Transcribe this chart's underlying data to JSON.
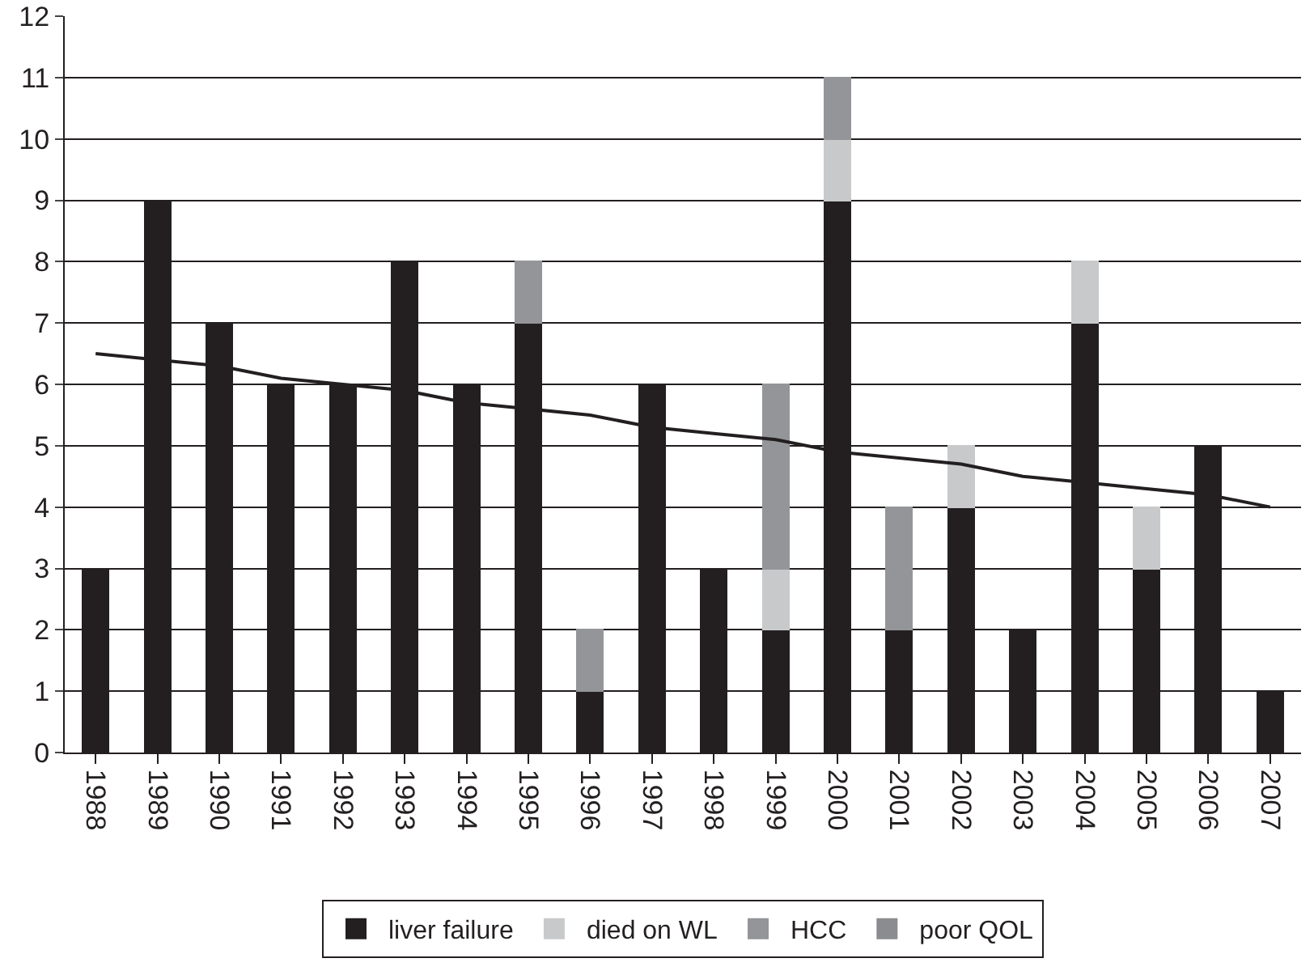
{
  "chart_data": {
    "type": "bar",
    "stacked": true,
    "categories": [
      "1988",
      "1989",
      "1990",
      "1991",
      "1992",
      "1993",
      "1994",
      "1995",
      "1996",
      "1997",
      "1998",
      "1999",
      "2000",
      "2001",
      "2002",
      "2003",
      "2004",
      "2005",
      "2006",
      "2007"
    ],
    "series": [
      {
        "name": "liver failure",
        "color": "#231f20",
        "values": [
          3,
          9,
          7,
          6,
          6,
          8,
          6,
          7,
          1,
          6,
          3,
          2,
          9,
          2,
          4,
          2,
          7,
          3,
          5,
          1
        ]
      },
      {
        "name": "died on WL",
        "color": "#c8c9cb",
        "values": [
          null,
          null,
          null,
          null,
          null,
          null,
          null,
          null,
          null,
          null,
          null,
          1,
          1,
          null,
          1,
          null,
          1,
          1,
          null,
          null
        ]
      },
      {
        "name": "HCC",
        "color": "#939598",
        "values": [
          null,
          null,
          null,
          null,
          null,
          null,
          null,
          1,
          1,
          null,
          null,
          3,
          1,
          2,
          null,
          null,
          null,
          null,
          null,
          null
        ]
      },
      {
        "name": "poor QOL",
        "color": "#8a8c8f",
        "values": [
          null,
          null,
          null,
          null,
          null,
          null,
          null,
          null,
          null,
          null,
          null,
          null,
          null,
          null,
          null,
          null,
          null,
          null,
          null,
          null
        ]
      },
      {
        "type": "line",
        "color": "#231f20",
        "values": [
          6.5,
          6.4,
          6.3,
          6.1,
          6.0,
          5.9,
          5.7,
          5.6,
          5.5,
          5.3,
          5.2,
          5.1,
          4.9,
          4.8,
          4.7,
          4.5,
          4.4,
          4.3,
          4.2,
          4.0
        ]
      }
    ],
    "ylim": [
      0,
      12
    ],
    "yticks": [
      0,
      1,
      2,
      3,
      4,
      5,
      6,
      7,
      8,
      9,
      10,
      11,
      12
    ],
    "grid": "y",
    "legend": "bottom"
  }
}
